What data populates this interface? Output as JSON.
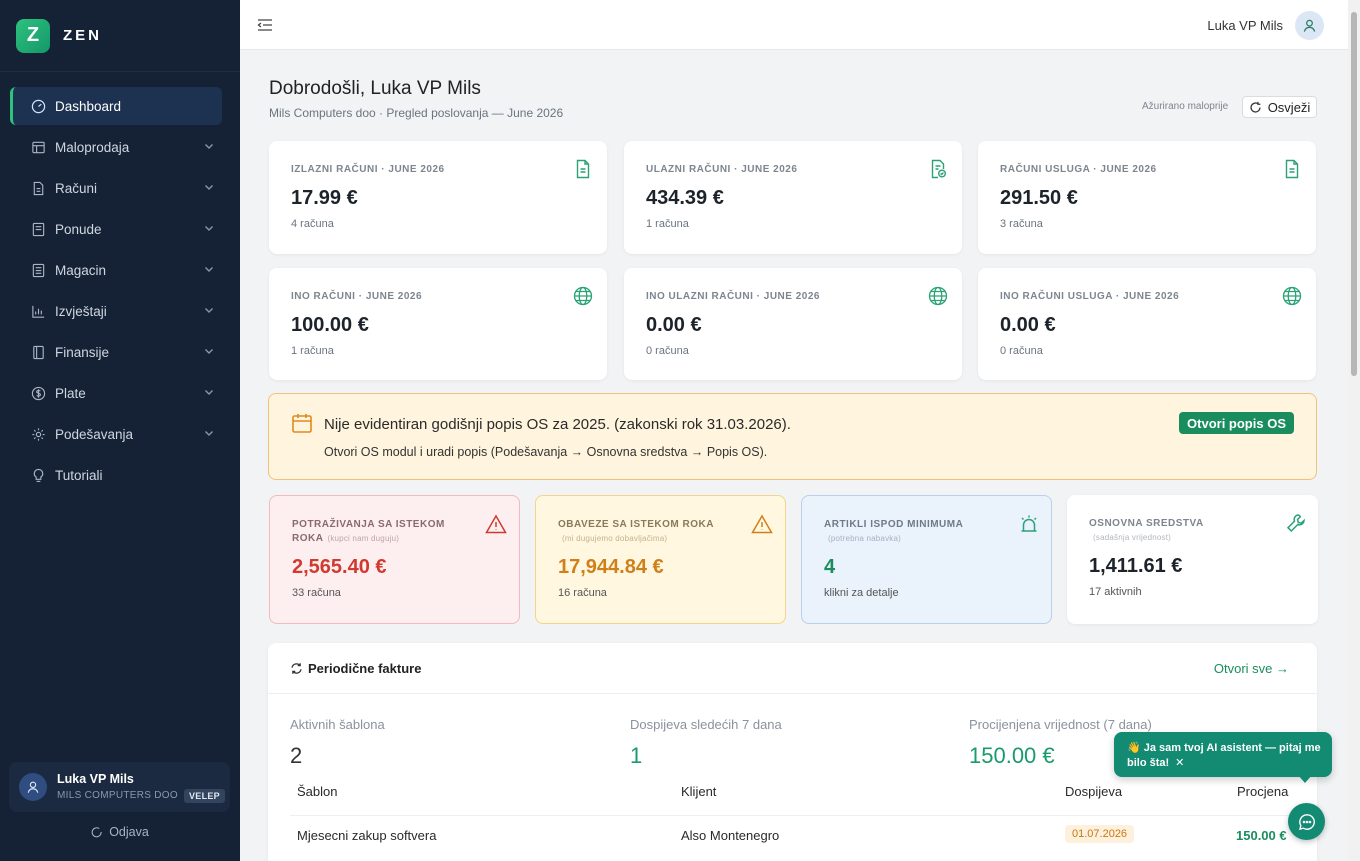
{
  "brand": {
    "logo_letter": "Z",
    "name": "ZEN"
  },
  "sidebar": {
    "items": [
      {
        "label": "Dashboard",
        "icon": "gauge-icon",
        "active": true,
        "expandable": false
      },
      {
        "label": "Maloprodaja",
        "icon": "store-icon",
        "expandable": true
      },
      {
        "label": "Računi",
        "icon": "invoice-icon",
        "expandable": true
      },
      {
        "label": "Ponude",
        "icon": "offer-icon",
        "expandable": true
      },
      {
        "label": "Magacin",
        "icon": "warehouse-icon",
        "expandable": true
      },
      {
        "label": "Izvještaji",
        "icon": "bar-chart-icon",
        "expandable": true
      },
      {
        "label": "Finansije",
        "icon": "wallet-icon",
        "expandable": true
      },
      {
        "label": "Plate",
        "icon": "dollar-icon",
        "expandable": true
      },
      {
        "label": "Podešavanja",
        "icon": "gear-icon",
        "expandable": true
      },
      {
        "label": "Tutoriali",
        "icon": "lightbulb-icon",
        "expandable": false
      }
    ],
    "user": {
      "name": "Luka VP Mils",
      "company": "MILS COMPUTERS DOO",
      "badge": "VELEP"
    },
    "logout_label": "Odjava"
  },
  "topbar": {
    "user_name": "Luka VP Mils"
  },
  "header": {
    "title": "Dobrodošli, Luka VP Mils",
    "subtitle": "Mils Computers doo · Pregled poslovanja — June 2026",
    "updated": "Ažurirano maloprije",
    "refresh_label": "Osvježi"
  },
  "stats": [
    {
      "label": "IZLAZNI RAČUNI · JUNE 2026",
      "value": "17.99 €",
      "count": "4 računa",
      "icon": "document-icon"
    },
    {
      "label": "ULAZNI RAČUNI · JUNE 2026",
      "value": "434.39 €",
      "count": "1 računa",
      "icon": "document-check-icon"
    },
    {
      "label": "RAČUNI USLUGA · JUNE 2026",
      "value": "291.50 €",
      "count": "3 računa",
      "icon": "document-icon"
    },
    {
      "label": "INO RAČUNI · JUNE 2026",
      "value": "100.00 €",
      "count": "1 računa",
      "icon": "globe-icon"
    },
    {
      "label": "INO ULAZNI RAČUNI · JUNE 2026",
      "value": "0.00 €",
      "count": "0 računa",
      "icon": "globe-icon"
    },
    {
      "label": "INO RAČUNI USLUGA · JUNE 2026",
      "value": "0.00 €",
      "count": "0 računa",
      "icon": "globe-icon"
    }
  ],
  "alert": {
    "title": "Nije evidentiran godišnji popis OS za 2025. (zakonski rok 31.03.2026).",
    "text": "Otvori OS modul i uradi popis (Podešavanja → Osnovna sredstva → Popis OS).",
    "button": "Otvori popis OS"
  },
  "kpis": [
    {
      "label": "POTRAŽIVANJA SA ISTEKOM ROKA",
      "hint": "(kupci nam duguju)",
      "value": "2,565.40 €",
      "count": "33 računa",
      "icon": "warning-icon",
      "color": "#d03a2f"
    },
    {
      "label": "OBAVEZE SA ISTEKOM ROKA",
      "hint": "(mi dugujemo dobavljačima)",
      "value": "17,944.84 €",
      "count": "16 računa",
      "icon": "warning-icon",
      "color": "#d0801a"
    },
    {
      "label": "ARTIKLI ISPOD MINIMUMA",
      "hint": "(potrebna nabavka)",
      "value": "4",
      "count": "klikni za detalje",
      "icon": "alarm-icon",
      "color": "#1a8d5f"
    },
    {
      "label": "OSNOVNA SREDSTVA",
      "hint": "(sadašnja vrijednost)",
      "value": "1,411.61 €",
      "count": "17 aktivnih",
      "icon": "wrench-icon",
      "color": "#1d232b"
    }
  ],
  "periodic": {
    "title": "Periodične fakture",
    "open_all": "Otvori sve →",
    "stats": [
      {
        "label": "Aktivnih šablona",
        "value": "2"
      },
      {
        "label": "Dospijeva sledećih 7 dana",
        "value": "1"
      },
      {
        "label": "Procijenjena vrijednost (7 dana)",
        "value": "150.00 €"
      }
    ],
    "columns": [
      "Šablon",
      "Klijent",
      "Dospijeva",
      "Procjena"
    ],
    "rows": [
      {
        "template": "Mjesecni zakup softvera",
        "client": "Also Montenegro",
        "due": "01.07.2026",
        "estimate": "150.00 €"
      }
    ]
  },
  "assistant": {
    "message": "👋 Ja sam tvoj AI asistent — pitaj me bilo šta!",
    "close": "✕"
  },
  "colors": {
    "accent": "#1a8d5f",
    "sidebar_bg": "#152235",
    "alert_bg": "#fff4dd",
    "danger": "#d03a2f",
    "warning": "#d0801a"
  }
}
